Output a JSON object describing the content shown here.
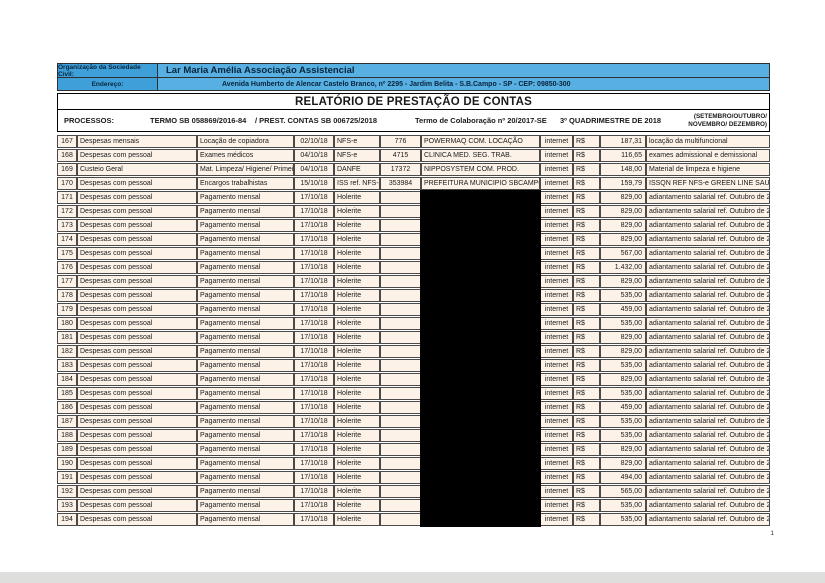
{
  "header": {
    "org_label": "Organização da Sociedade Civil:",
    "org_value": "Lar Maria Amélia Associação Assistencial",
    "address_label": "Endereço:",
    "address_value": "Avenida Humberto de Alencar Castelo Branco, nº 2295 - Jardim Belita - S.B.Campo - SP - CEP: 09850-300",
    "title": "RELATÓRIO DE PRESTAÇÃO DE CONTAS",
    "processos": {
      "label": "PROCESSOS:",
      "termo": "TERMO SB 058869/2016-84",
      "prest_contas": "/ PREST. CONTAS SB 006725/2018",
      "colaboracao": "Termo de Colaboração nº 20/2017-SE",
      "quadrimestre": "3º QUADRIMESTRE DE 2018",
      "meses": "(SETEMBRO/OUTUBRO/ NOVEMBRO/ DEZEMBRO)"
    }
  },
  "colors": {
    "header_label_blue": "#3f9fd9",
    "header_value_blue": "#58afe1",
    "row_peach": "#fcf2e8",
    "redaction_black": "#000000"
  },
  "table": {
    "column_keys": [
      "num",
      "category",
      "description",
      "date",
      "doc_type",
      "doc_number",
      "vendor",
      "via",
      "currency",
      "amount",
      "obs"
    ],
    "rows": [
      [
        "167",
        "Despesas mensais",
        "Locação de copiadora",
        "02/10/18",
        "NFS-e",
        "776",
        "POWERMAQ COM. LOCAÇÃO",
        "internet",
        "R$",
        "187,31",
        "locação da multifuncional"
      ],
      [
        "168",
        "Despesas com pessoal",
        "Exames médicos",
        "04/10/18",
        "NFS-e",
        "4715",
        "CLINICA MED. SEG. TRAB.",
        "internet",
        "R$",
        "116,65",
        "exames admissional e demissional"
      ],
      [
        "169",
        "Custeio Geral",
        "Mat. Limpeza/ Higiene/ Primeiros S",
        "04/10/18",
        "DANFE",
        "17372",
        "NIPPOSYSTEM COM. PROD.",
        "internet",
        "R$",
        "148,00",
        "Material de limpeza e higiene"
      ],
      [
        "170",
        "Despesas com pessoal",
        "Encargos trabalhistas",
        "15/10/18",
        "ISS ref. NFS-e",
        "353984",
        "PREFEITURA MUNICIPIO SBCAMPO",
        "internet",
        "R$",
        "159,79",
        "ISSQN REF NFS-e GREEN LINE SAUDE"
      ],
      [
        "171",
        "Despesas com pessoal",
        "Pagamento mensal",
        "17/10/18",
        "Holerite",
        "",
        "",
        "internet",
        "R$",
        "829,00",
        "adiantamento salarial ref. Outubro de 2018"
      ],
      [
        "172",
        "Despesas com pessoal",
        "Pagamento mensal",
        "17/10/18",
        "Holerite",
        "",
        "",
        "internet",
        "R$",
        "829,00",
        "adiantamento salarial ref. Outubro de 2018"
      ],
      [
        "173",
        "Despesas com pessoal",
        "Pagamento mensal",
        "17/10/18",
        "Holerite",
        "",
        "",
        "internet",
        "R$",
        "829,00",
        "adiantamento salarial ref. Outubro de 2018"
      ],
      [
        "174",
        "Despesas com pessoal",
        "Pagamento mensal",
        "17/10/18",
        "Holerite",
        "",
        "",
        "internet",
        "R$",
        "829,00",
        "adiantamento salarial ref. Outubro de 2018"
      ],
      [
        "175",
        "Despesas com pessoal",
        "Pagamento mensal",
        "17/10/18",
        "Holerite",
        "",
        "",
        "internet",
        "R$",
        "567,00",
        "adiantamento salarial ref. Outubro de 2018"
      ],
      [
        "176",
        "Despesas com pessoal",
        "Pagamento mensal",
        "17/10/18",
        "Holerite",
        "",
        "",
        "internet",
        "R$",
        "1.432,00",
        "adiantamento salarial ref. Outubro de 2018"
      ],
      [
        "177",
        "Despesas com pessoal",
        "Pagamento mensal",
        "17/10/18",
        "Holerite",
        "",
        "",
        "internet",
        "R$",
        "829,00",
        "adiantamento salarial ref. Outubro de 2018"
      ],
      [
        "178",
        "Despesas com pessoal",
        "Pagamento mensal",
        "17/10/18",
        "Holerite",
        "",
        "",
        "internet",
        "R$",
        "535,00",
        "adiantamento salarial ref. Outubro de 2018"
      ],
      [
        "179",
        "Despesas com pessoal",
        "Pagamento mensal",
        "17/10/18",
        "Holerite",
        "",
        "",
        "internet",
        "R$",
        "459,00",
        "adiantamento salarial ref. Outubro de 2018"
      ],
      [
        "180",
        "Despesas com pessoal",
        "Pagamento mensal",
        "17/10/18",
        "Holerite",
        "",
        "",
        "internet",
        "R$",
        "535,00",
        "adiantamento salarial ref. Outubro de 2018"
      ],
      [
        "181",
        "Despesas com pessoal",
        "Pagamento mensal",
        "17/10/18",
        "Holerite",
        "",
        "",
        "internet",
        "R$",
        "829,00",
        "adiantamento salarial ref. Outubro de 2018"
      ],
      [
        "182",
        "Despesas com pessoal",
        "Pagamento mensal",
        "17/10/18",
        "Holerite",
        "",
        "",
        "internet",
        "R$",
        "829,00",
        "adiantamento salarial ref. Outubro de 2018"
      ],
      [
        "183",
        "Despesas com pessoal",
        "Pagamento mensal",
        "17/10/18",
        "Holerite",
        "",
        "",
        "internet",
        "R$",
        "535,00",
        "adiantamento salarial ref. Outubro de 2018"
      ],
      [
        "184",
        "Despesas com pessoal",
        "Pagamento mensal",
        "17/10/18",
        "Holerite",
        "",
        "",
        "internet",
        "R$",
        "829,00",
        "adiantamento salarial ref. Outubro de 2018"
      ],
      [
        "185",
        "Despesas com pessoal",
        "Pagamento mensal",
        "17/10/18",
        "Holerite",
        "",
        "",
        "internet",
        "R$",
        "535,00",
        "adiantamento salarial ref. Outubro de 2018"
      ],
      [
        "186",
        "Despesas com pessoal",
        "Pagamento mensal",
        "17/10/18",
        "Holerite",
        "",
        "",
        "internet",
        "R$",
        "459,00",
        "adiantamento salarial ref. Outubro de 2018"
      ],
      [
        "187",
        "Despesas com pessoal",
        "Pagamento mensal",
        "17/10/18",
        "Holerite",
        "",
        "",
        "internet",
        "R$",
        "535,00",
        "adiantamento salarial ref. Outubro de 2018"
      ],
      [
        "188",
        "Despesas com pessoal",
        "Pagamento mensal",
        "17/10/18",
        "Holerite",
        "",
        "",
        "internet",
        "R$",
        "535,00",
        "adiantamento salarial ref. Outubro de 2018"
      ],
      [
        "189",
        "Despesas com pessoal",
        "Pagamento mensal",
        "17/10/18",
        "Holerite",
        "",
        "",
        "internet",
        "R$",
        "829,00",
        "adiantamento salarial ref. Outubro de 2018"
      ],
      [
        "190",
        "Despesas com pessoal",
        "Pagamento mensal",
        "17/10/18",
        "Holerite",
        "",
        "",
        "internet",
        "R$",
        "829,00",
        "adiantamento salarial ref. Outubro de 2018"
      ],
      [
        "191",
        "Despesas com pessoal",
        "Pagamento mensal",
        "17/10/18",
        "Holerite",
        "",
        "",
        "internet",
        "R$",
        "494,00",
        "adiantamento salarial ref. Outubro de 2018"
      ],
      [
        "192",
        "Despesas com pessoal",
        "Pagamento mensal",
        "17/10/18",
        "Holerite",
        "",
        "",
        "internet",
        "R$",
        "565,00",
        "adiantamento salarial ref. Outubro de 2018"
      ],
      [
        "193",
        "Despesas com pessoal",
        "Pagamento mensal",
        "17/10/18",
        "Holerite",
        "",
        "",
        "internet",
        "R$",
        "535,00",
        "adiantamento salarial ref. Outubro de 2018"
      ],
      [
        "194",
        "Despesas com pessoal",
        "Pagamento mensal",
        "17/10/18",
        "Holerite",
        "",
        "",
        "internet",
        "R$",
        "535,00",
        "adiantamento salarial ref. Outubro de 2018"
      ]
    ]
  },
  "footer": {
    "page_number": "1"
  }
}
